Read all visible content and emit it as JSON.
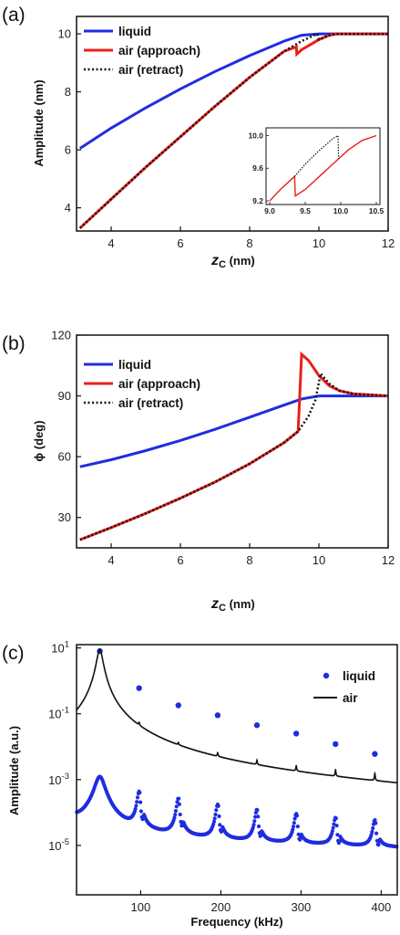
{
  "chart_data": [
    {
      "type": "line",
      "panel_label": "(a)",
      "xlabel": "z",
      "xlabel_sub": "C",
      "xlabel_unit": " (nm)",
      "ylabel": "Amplitude (nm)",
      "xlim": [
        3,
        12
      ],
      "ylim": [
        3.2,
        10.6
      ],
      "xticks": [
        4,
        6,
        8,
        10,
        12
      ],
      "yticks": [
        4,
        6,
        8,
        10
      ],
      "legend_position": "top-left",
      "series": [
        {
          "name": "liquid",
          "color": "#1f2de0",
          "style": "solid",
          "x": [
            3.1,
            4,
            5,
            6,
            7,
            8,
            9,
            9.5,
            10,
            10.5,
            11,
            12
          ],
          "y": [
            6.05,
            6.75,
            7.45,
            8.1,
            8.7,
            9.25,
            9.75,
            9.95,
            10.0,
            10.0,
            10.0,
            10.0
          ]
        },
        {
          "name": "air (approach)",
          "color": "#e8201c",
          "style": "solid",
          "x": [
            3.1,
            4,
            5,
            6,
            7,
            8,
            9,
            9.35,
            9.36,
            9.5,
            10.0,
            10.3,
            10.5,
            11,
            12
          ],
          "y": [
            3.3,
            4.3,
            5.4,
            6.45,
            7.5,
            8.5,
            9.4,
            9.55,
            9.3,
            9.45,
            9.8,
            9.95,
            10.0,
            10.0,
            10.0
          ]
        },
        {
          "name": "air (retract)",
          "color": "#111111",
          "style": "dotted",
          "x": [
            3.1,
            4,
            5,
            6,
            7,
            8,
            9,
            9.5,
            9.95,
            10.0,
            10.3,
            10.5,
            11,
            12
          ],
          "y": [
            3.3,
            4.3,
            5.4,
            6.45,
            7.5,
            8.5,
            9.4,
            9.75,
            10.0,
            9.8,
            9.95,
            10.0,
            10.0,
            10.0
          ]
        }
      ],
      "inset": {
        "xlim": [
          9.0,
          10.5
        ],
        "ylim": [
          9.2,
          10.05
        ],
        "xticks": [
          9.0,
          9.5,
          10.0,
          10.5
        ],
        "yticks": [
          9.2,
          9.6,
          10.0
        ],
        "xtick_labels": [
          "9.0",
          "9.5",
          "10.0",
          "10.5"
        ],
        "ytick_labels": [
          "9.2",
          "9.6",
          "10.0"
        ],
        "series": [
          {
            "name": "air (approach)",
            "color": "#e8201c",
            "style": "solid",
            "x": [
              9.0,
              9.15,
              9.3,
              9.35,
              9.36,
              9.5,
              9.7,
              9.9,
              10.1,
              10.3,
              10.5
            ],
            "y": [
              9.2,
              9.34,
              9.46,
              9.5,
              9.26,
              9.34,
              9.5,
              9.66,
              9.82,
              9.94,
              10.0
            ]
          },
          {
            "name": "air (retract)",
            "color": "#111111",
            "style": "dotted",
            "x": [
              9.35,
              9.5,
              9.7,
              9.9,
              9.96,
              9.97
            ],
            "y": [
              9.5,
              9.65,
              9.82,
              9.97,
              10.0,
              9.72
            ]
          }
        ]
      }
    },
    {
      "type": "line",
      "panel_label": "(b)",
      "xlabel": "z",
      "xlabel_sub": "C",
      "xlabel_unit": " (nm)",
      "ylabel": "ϕ (deg)",
      "xlim": [
        3,
        12
      ],
      "ylim": [
        15,
        120
      ],
      "xticks": [
        4,
        6,
        8,
        10,
        12
      ],
      "yticks": [
        30,
        60,
        90,
        120
      ],
      "legend_position": "top-left",
      "series": [
        {
          "name": "liquid",
          "color": "#1f2de0",
          "style": "solid",
          "x": [
            3.1,
            4,
            5,
            6,
            7,
            8,
            9,
            9.5,
            10,
            11,
            12
          ],
          "y": [
            55,
            58.5,
            63,
            68,
            73.5,
            79.5,
            85.5,
            88.5,
            90,
            90,
            90
          ]
        },
        {
          "name": "air (approach)",
          "color": "#e8201c",
          "style": "solid",
          "x": [
            3.1,
            4,
            5,
            6,
            7,
            8,
            9,
            9.4,
            9.5,
            9.7,
            10.0,
            10.3,
            10.6,
            11,
            11.5,
            12
          ],
          "y": [
            19,
            25,
            32,
            39.5,
            47.5,
            56.5,
            67,
            72.5,
            110.5,
            107.5,
            100,
            95,
            92.5,
            91,
            90.5,
            90
          ]
        },
        {
          "name": "air (retract)",
          "color": "#111111",
          "style": "dotted",
          "x": [
            3.1,
            4,
            5,
            6,
            7,
            8,
            9,
            9.4,
            9.7,
            9.9,
            10.05,
            10.3,
            10.6,
            11,
            11.5,
            12
          ],
          "y": [
            19,
            25,
            32,
            39.5,
            47.5,
            56.5,
            67,
            72.5,
            80,
            88,
            101,
            96,
            92.5,
            91,
            90.5,
            90
          ]
        }
      ]
    },
    {
      "type": "line",
      "panel_label": "(c)",
      "xlabel": "Frequency (kHz)",
      "ylabel": "Amplitude (a.u.)",
      "yscale": "log",
      "xlim": [
        20,
        420
      ],
      "ylim_exp": [
        -6.5,
        1.1
      ],
      "xticks": [
        100,
        200,
        300,
        400
      ],
      "yticks_exp": [
        1,
        -1,
        -3,
        -5
      ],
      "legend_position": "top-right",
      "peaks_khz": [
        49,
        98,
        147,
        196,
        245,
        294,
        343,
        392
      ],
      "series": [
        {
          "name": "liquid",
          "color": "#1f2de0",
          "style": "markers",
          "harmonic_peaks": {
            "x": [
              49,
              98,
              147,
              196,
              245,
              294,
              343,
              392
            ],
            "y": [
              8,
              0.6,
              0.18,
              0.09,
              0.045,
              0.025,
              0.012,
              0.006
            ]
          }
        },
        {
          "name": "air",
          "color": "#111111",
          "style": "solid",
          "peak_heights": [
            9,
            0.01,
            0.002,
            0.0015,
            0.001,
            0.0008,
            0.0007,
            0.0006
          ]
        }
      ]
    }
  ]
}
